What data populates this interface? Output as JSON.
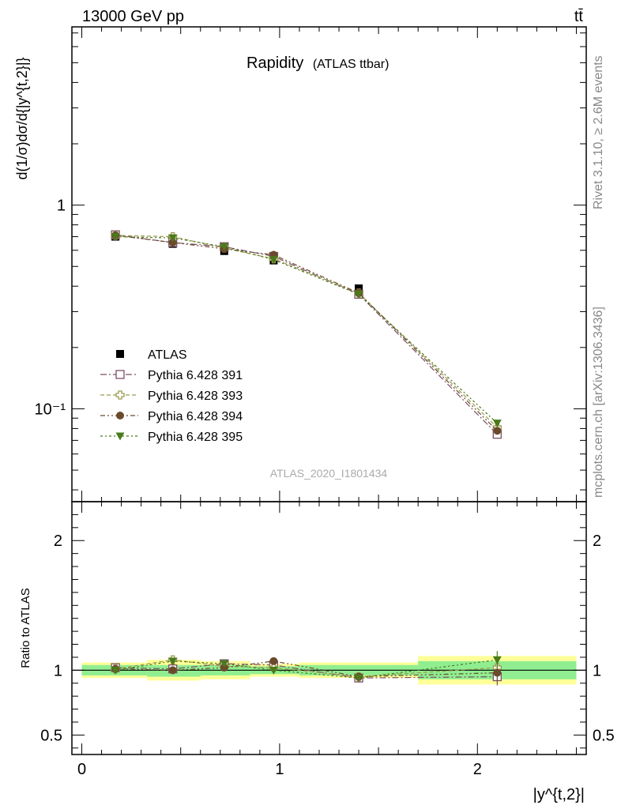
{
  "header": {
    "left": "13000 GeV pp",
    "right": "tt̄"
  },
  "title": {
    "main": "Rapidity",
    "sub": "(ATLAS ttbar)"
  },
  "side_labels": {
    "rivet": "Rivet 3.1.10, ≥ 2.6M events",
    "mcplots": "mcplots.cern.ch [arXiv:1306.3436]"
  },
  "watermark": "ATLAS_2020_I1801434",
  "ylabel_main": "d(1/σ)dσ/d{|y^{t,2}|}",
  "ylabel_ratio": "Ratio to ATLAS",
  "xlabel": "|y^{t,2}|",
  "legend_labels": [
    "ATLAS",
    "Pythia 6.428 391",
    "Pythia 6.428 393",
    "Pythia 6.428 394",
    "Pythia 6.428 395"
  ],
  "colors": {
    "s391": "#7b4f66",
    "s393": "#9c9a4e",
    "s394": "#6b4a2c",
    "s395": "#4a7a1c",
    "band_green": "#90ee90",
    "band_yellow": "#ffff99"
  },
  "chart_data": [
    {
      "type": "scatter",
      "title": "Rapidity (ATLAS ttbar)",
      "xlabel": "|y^{t,2}|",
      "ylabel": "d(1/σ)dσ/d{|y^{t,2}|}",
      "yscale": "log",
      "xlim": [
        -0.05,
        2.55
      ],
      "ylim": [
        0.035,
        7.5
      ],
      "ytick_labels": [
        "10⁻¹",
        "1"
      ],
      "ytick_values": [
        0.1,
        1
      ],
      "legend_position": "bottom-left",
      "bins": [
        [
          0,
          0.33
        ],
        [
          0.33,
          0.6
        ],
        [
          0.6,
          0.85
        ],
        [
          0.85,
          1.1
        ],
        [
          1.1,
          1.7
        ],
        [
          1.7,
          2.5
        ]
      ],
      "x": [
        0.17,
        0.46,
        0.72,
        0.97,
        1.4,
        2.1
      ],
      "series": [
        {
          "name": "ATLAS",
          "values": [
            0.7,
            0.645,
            0.595,
            0.535,
            0.39,
            0.079
          ]
        },
        {
          "name": "Pythia 6.428 391",
          "values": [
            0.715,
            0.655,
            0.625,
            0.56,
            0.365,
            0.075
          ]
        },
        {
          "name": "Pythia 6.428 393",
          "values": [
            0.71,
            0.7,
            0.615,
            0.545,
            0.37,
            0.081
          ]
        },
        {
          "name": "Pythia 6.428 394",
          "values": [
            0.71,
            0.655,
            0.61,
            0.57,
            0.37,
            0.078
          ]
        },
        {
          "name": "Pythia 6.428 395",
          "values": [
            0.7,
            0.69,
            0.625,
            0.54,
            0.365,
            0.085
          ]
        }
      ]
    },
    {
      "type": "scatter",
      "ylabel": "Ratio to ATLAS",
      "xlabel": "|y^{t,2}|",
      "xlim": [
        -0.05,
        2.55
      ],
      "ylim": [
        0.35,
        2.3
      ],
      "xtick_labels": [
        "0",
        "1",
        "2"
      ],
      "xtick_values": [
        0,
        1,
        2
      ],
      "ytick_labels": [
        "0.5",
        "1",
        "2"
      ],
      "ytick_values": [
        0.5,
        1,
        2
      ],
      "x": [
        0.17,
        0.46,
        0.72,
        0.97,
        1.4,
        2.1
      ],
      "band_green": [
        [
          0.96,
          1.04
        ],
        [
          0.95,
          1.04
        ],
        [
          0.96,
          1.04
        ],
        [
          0.97,
          1.03
        ],
        [
          0.96,
          1.04
        ],
        [
          0.93,
          1.07
        ]
      ],
      "band_yellow": [
        [
          0.94,
          1.06
        ],
        [
          0.92,
          1.08
        ],
        [
          0.93,
          1.07
        ],
        [
          0.95,
          1.05
        ],
        [
          0.94,
          1.06
        ],
        [
          0.89,
          1.11
        ]
      ],
      "series": [
        {
          "name": "Pythia 6.428 391",
          "values": [
            1.02,
            1.01,
            1.05,
            1.04,
            0.94,
            0.95
          ]
        },
        {
          "name": "Pythia 6.428 393",
          "values": [
            1.01,
            1.08,
            1.03,
            1.02,
            0.95,
            1.02
          ]
        },
        {
          "name": "Pythia 6.428 394",
          "values": [
            1.01,
            1.0,
            1.02,
            1.07,
            0.95,
            0.98
          ]
        },
        {
          "name": "Pythia 6.428 395",
          "values": [
            1.0,
            1.07,
            1.05,
            1.0,
            0.94,
            1.08
          ]
        }
      ]
    }
  ]
}
